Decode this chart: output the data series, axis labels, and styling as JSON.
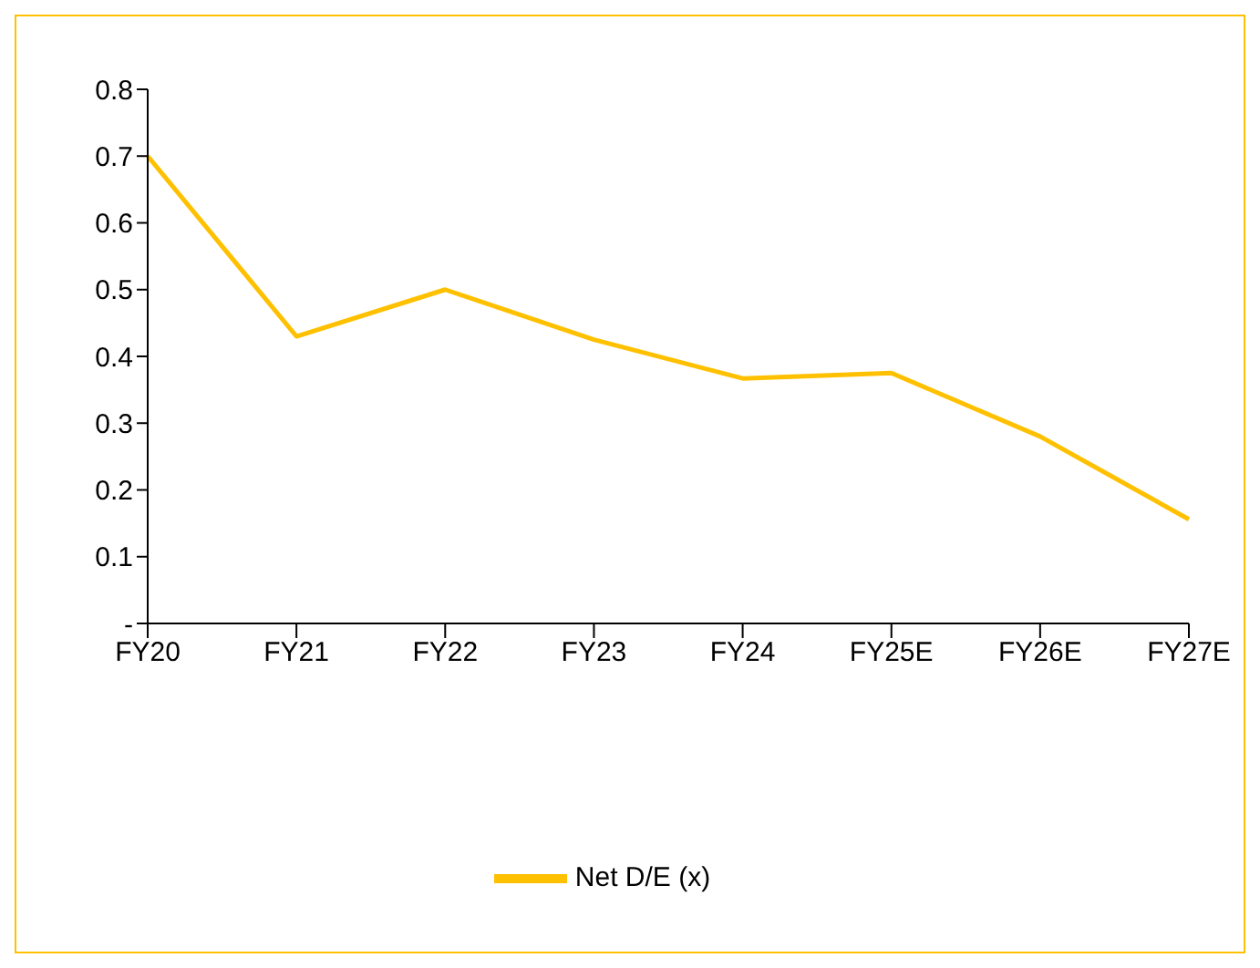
{
  "chart_data": {
    "type": "line",
    "categories": [
      "FY20",
      "FY21",
      "FY22",
      "FY23",
      "FY24",
      "FY25E",
      "FY26E",
      "FY27E"
    ],
    "series": [
      {
        "name": "Net D/E (x)",
        "color": "#ffc000",
        "values": [
          0.7,
          0.43,
          0.5,
          0.425,
          0.367,
          0.375,
          0.28,
          0.156
        ]
      }
    ],
    "ylim": [
      0,
      0.8
    ],
    "yticks": [
      {
        "value": 0,
        "label": "-"
      },
      0.1,
      0.2,
      0.3,
      0.4,
      0.5,
      0.6,
      0.7,
      0.8
    ],
    "grid": false,
    "legend": "bottom",
    "marker": "none",
    "line_style": "solid"
  }
}
